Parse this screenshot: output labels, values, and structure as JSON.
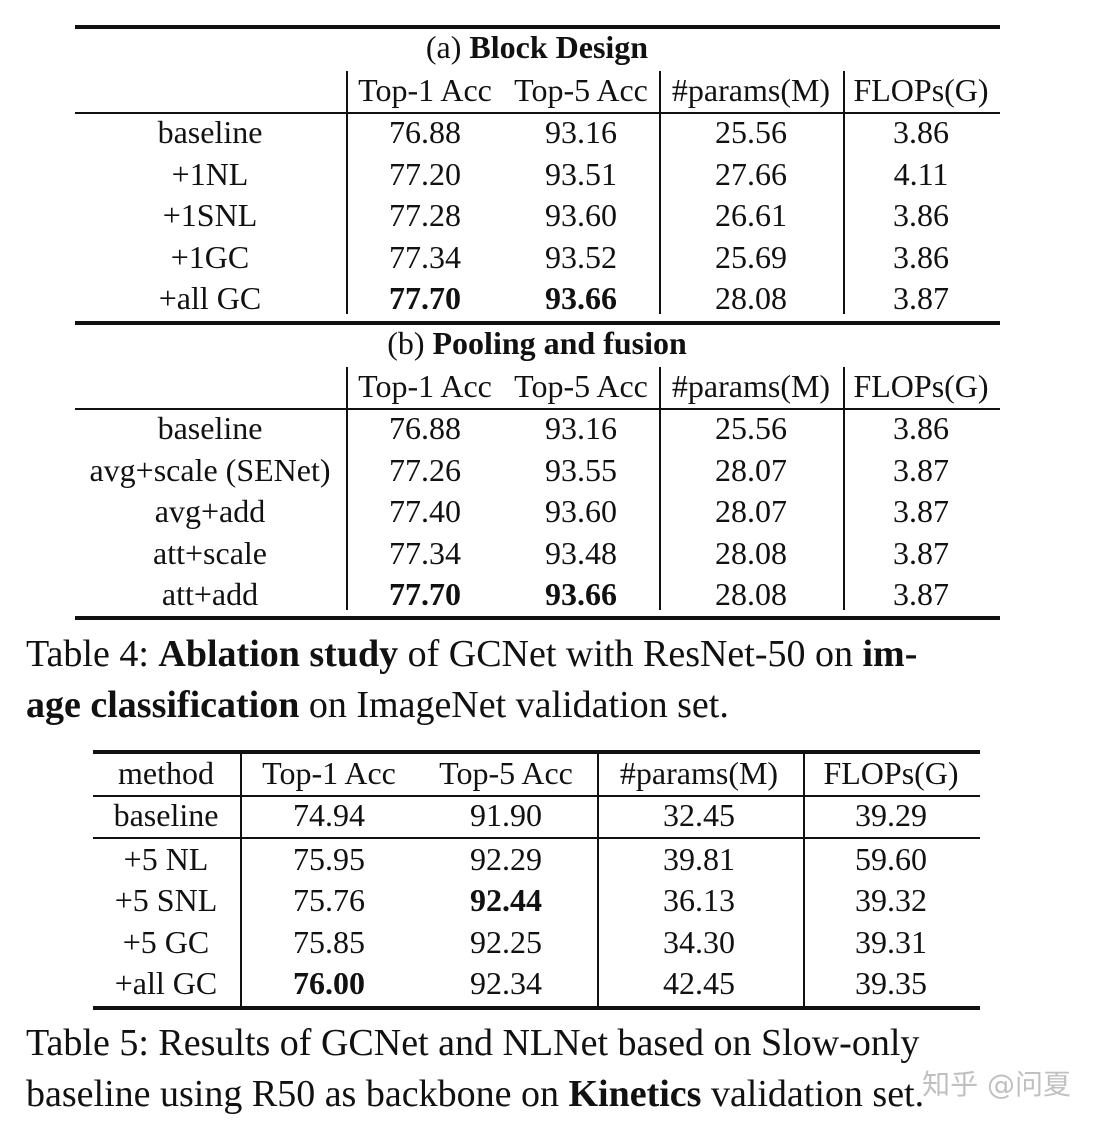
{
  "table4": {
    "headers": [
      "",
      "Top-1 Acc",
      "Top-5 Acc",
      "#params(M)",
      "FLOPs(G)"
    ],
    "sections": [
      {
        "title_prefix": "(a) ",
        "title_bold": "Block Design",
        "rows": [
          {
            "cells": [
              "baseline",
              "76.88",
              "93.16",
              "25.56",
              "3.86"
            ],
            "bold": []
          },
          {
            "cells": [
              "+1NL",
              "77.20",
              "93.51",
              "27.66",
              "4.11"
            ],
            "bold": []
          },
          {
            "cells": [
              "+1SNL",
              "77.28",
              "93.60",
              "26.61",
              "3.86"
            ],
            "bold": []
          },
          {
            "cells": [
              "+1GC",
              "77.34",
              "93.52",
              "25.69",
              "3.86"
            ],
            "bold": []
          },
          {
            "cells": [
              "+all GC",
              "77.70",
              "93.66",
              "28.08",
              "3.87"
            ],
            "bold": [
              1,
              2
            ]
          }
        ]
      },
      {
        "title_prefix": "(b) ",
        "title_bold": "Pooling and fusion",
        "rows": [
          {
            "cells": [
              "baseline",
              "76.88",
              "93.16",
              "25.56",
              "3.86"
            ],
            "bold": []
          },
          {
            "cells": [
              "avg+scale (SENet)",
              "77.26",
              "93.55",
              "28.07",
              "3.87"
            ],
            "bold": []
          },
          {
            "cells": [
              "avg+add",
              "77.40",
              "93.60",
              "28.07",
              "3.87"
            ],
            "bold": []
          },
          {
            "cells": [
              "att+scale",
              "77.34",
              "93.48",
              "28.08",
              "3.87"
            ],
            "bold": []
          },
          {
            "cells": [
              "att+add",
              "77.70",
              "93.66",
              "28.08",
              "3.87"
            ],
            "bold": [
              1,
              2
            ]
          }
        ]
      }
    ],
    "caption": [
      [
        {
          "text": "Table 4: ",
          "bold": false
        },
        {
          "text": "Ablation study",
          "bold": true
        },
        {
          "text": " of GCNet with ResNet-50 on ",
          "bold": false
        },
        {
          "text": "im-",
          "bold": true
        }
      ],
      [
        {
          "text": "age classification",
          "bold": true
        },
        {
          "text": " on ImageNet validation set.",
          "bold": false
        }
      ]
    ]
  },
  "table5": {
    "headers": [
      "method",
      "Top-1 Acc",
      "Top-5 Acc",
      "#params(M)",
      "FLOPs(G)"
    ],
    "rows": [
      {
        "cells": [
          "baseline",
          "74.94",
          "91.90",
          "32.45",
          "39.29"
        ],
        "bold": []
      },
      {
        "cells": [
          "+5 NL",
          "75.95",
          "92.29",
          "39.81",
          "59.60"
        ],
        "bold": []
      },
      {
        "cells": [
          "+5 SNL",
          "75.76",
          "92.44",
          "36.13",
          "39.32"
        ],
        "bold": [
          2
        ]
      },
      {
        "cells": [
          "+5 GC",
          "75.85",
          "92.25",
          "34.30",
          "39.31"
        ],
        "bold": []
      },
      {
        "cells": [
          "+all GC",
          "76.00",
          "92.34",
          "42.45",
          "39.35"
        ],
        "bold": [
          1
        ]
      }
    ],
    "caption": [
      [
        {
          "text": "Table 5: Results of GCNet and NLNet based on Slow-only",
          "bold": false
        }
      ],
      [
        {
          "text": "baseline using R50 as backbone on ",
          "bold": false
        },
        {
          "text": "Kinetics",
          "bold": true
        },
        {
          "text": " validation set.",
          "bold": false
        }
      ]
    ]
  },
  "watermark": "知乎 @问夏"
}
